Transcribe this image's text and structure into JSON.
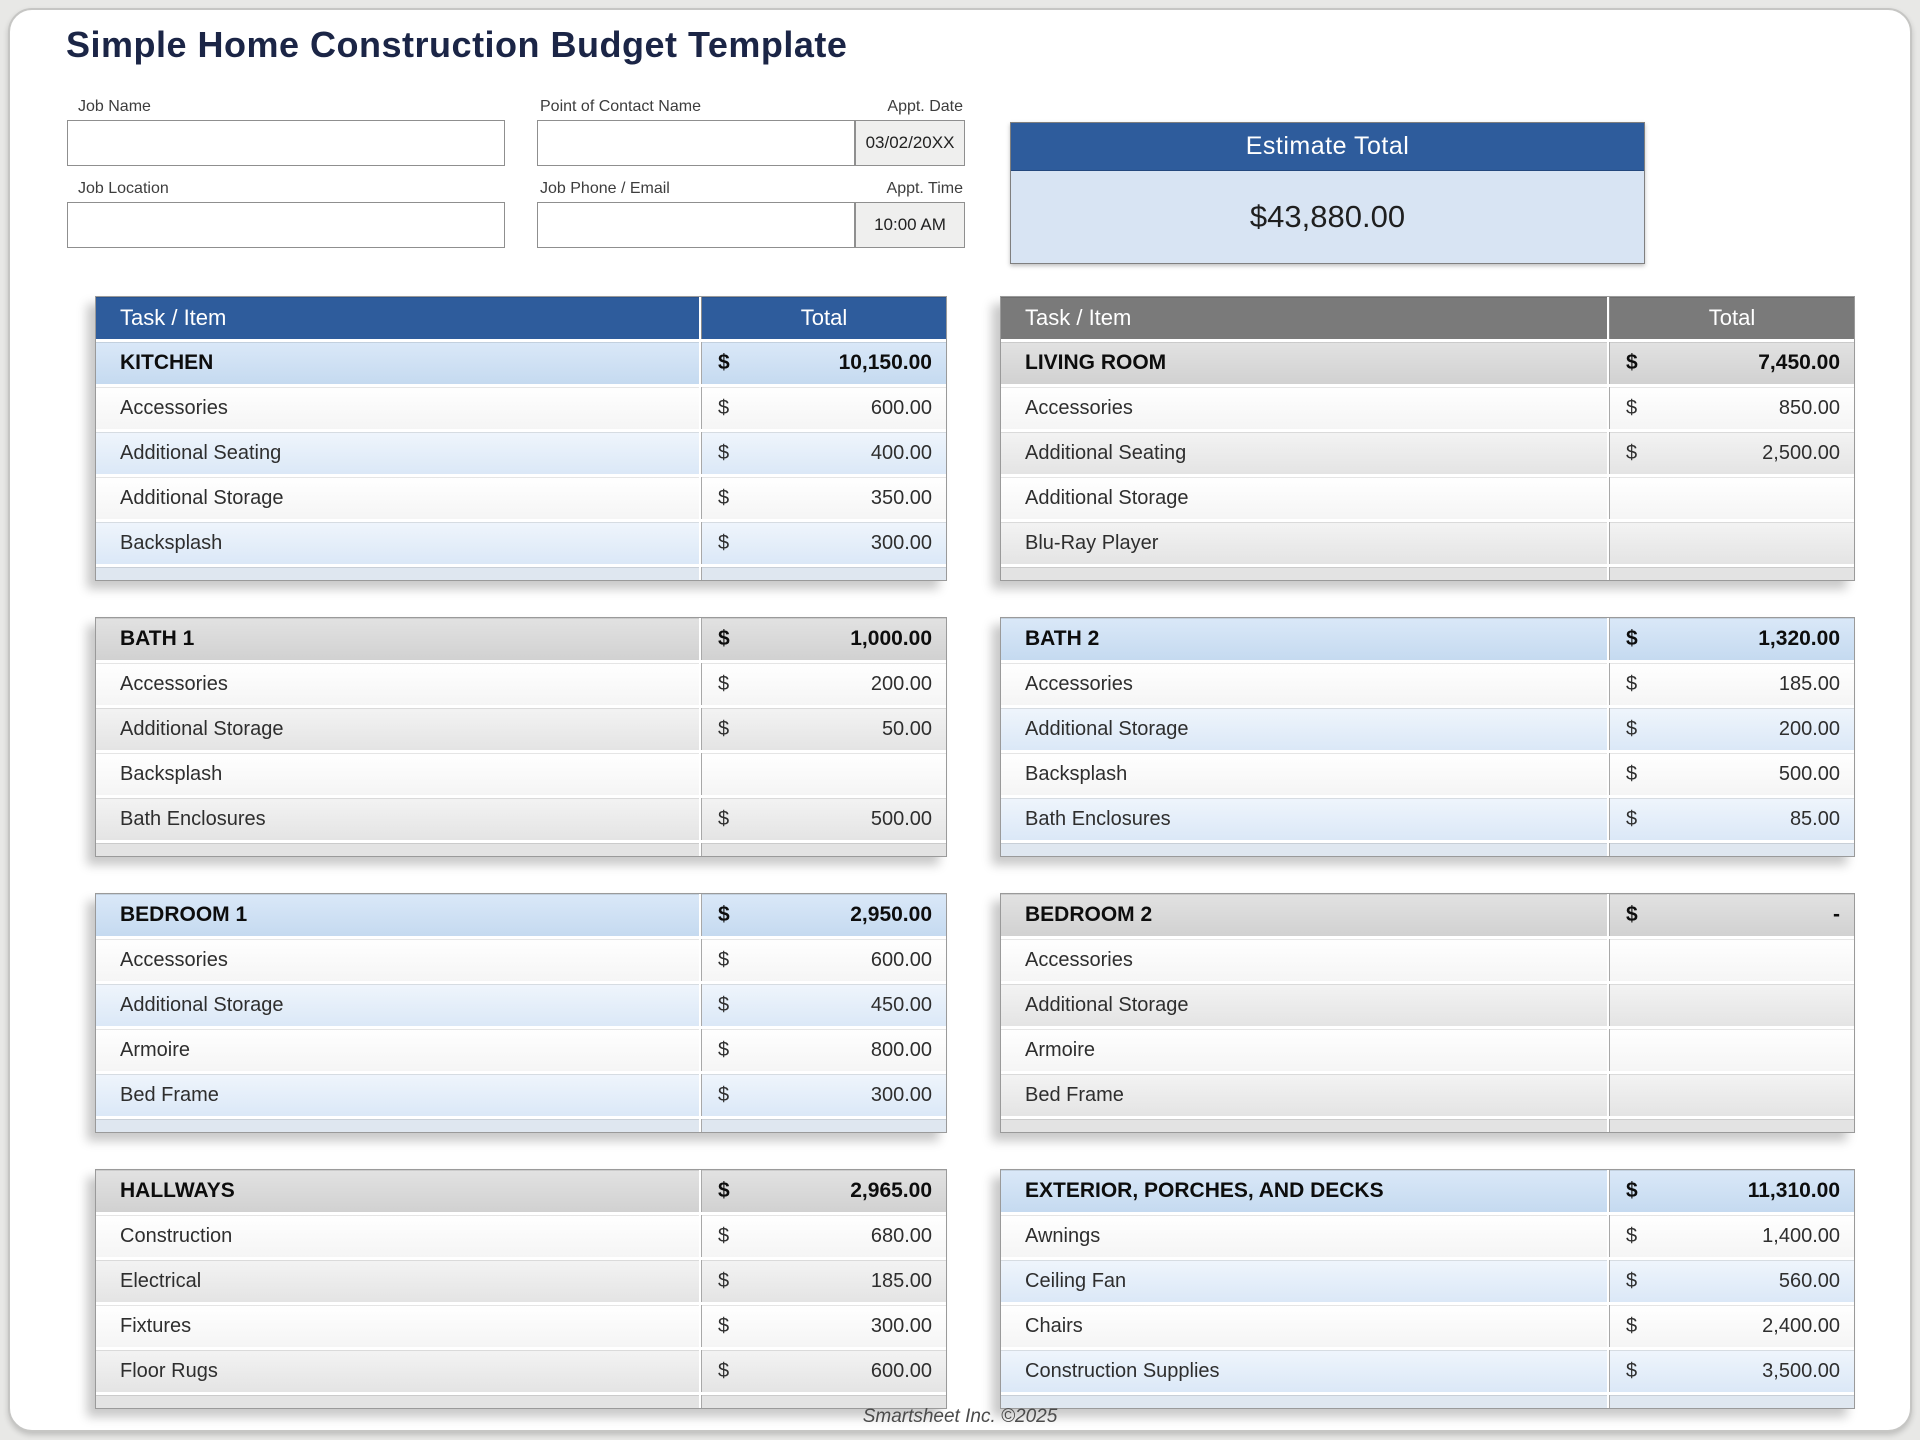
{
  "page": {
    "title": "Simple Home Construction Budget Template",
    "footer": "Smartsheet Inc. ©2025"
  },
  "form": {
    "job_name": {
      "label": "Job Name",
      "value": ""
    },
    "job_location": {
      "label": "Job Location",
      "value": ""
    },
    "contact_name": {
      "label": "Point of Contact Name",
      "value": ""
    },
    "job_phone_email": {
      "label": "Job Phone / Email",
      "value": ""
    },
    "appt_date": {
      "label": "Appt. Date",
      "value": "03/02/20XX"
    },
    "appt_time": {
      "label": "Appt. Time",
      "value": "10:00 AM"
    }
  },
  "estimate": {
    "label": "Estimate Total",
    "value": "$43,880.00"
  },
  "columns": {
    "task": "Task / Item",
    "total": "Total"
  },
  "currency_symbol": "$",
  "colors": {
    "title_navy": "#1b2546",
    "accent_blue": "#2e5c9c",
    "accent_gray": "#7a7a7a",
    "section_blue": "#cde0f4",
    "section_gray": "#d9d9d9",
    "row_blue": "#dee9f7",
    "row_gray": "#e9e9e9",
    "estimate_body": "#d8e4f3"
  },
  "tables": [
    {
      "name": "KITCHEN",
      "theme": "blue",
      "show_columns": true,
      "total": "10,150.00",
      "rows": [
        {
          "item": "Accessories",
          "amount": "600.00"
        },
        {
          "item": "Additional Seating",
          "amount": "400.00"
        },
        {
          "item": "Additional Storage",
          "amount": "350.00"
        },
        {
          "item": "Backsplash",
          "amount": "300.00"
        }
      ]
    },
    {
      "name": "LIVING ROOM",
      "theme": "gray",
      "show_columns": true,
      "total": "7,450.00",
      "rows": [
        {
          "item": "Accessories",
          "amount": "850.00"
        },
        {
          "item": "Additional Seating",
          "amount": "2,500.00"
        },
        {
          "item": "Additional Storage",
          "amount": ""
        },
        {
          "item": "Blu-Ray Player",
          "amount": ""
        }
      ]
    },
    {
      "name": "BATH 1",
      "theme": "gray",
      "show_columns": false,
      "total": "1,000.00",
      "rows": [
        {
          "item": "Accessories",
          "amount": "200.00"
        },
        {
          "item": "Additional Storage",
          "amount": "50.00"
        },
        {
          "item": "Backsplash",
          "amount": ""
        },
        {
          "item": "Bath Enclosures",
          "amount": "500.00"
        }
      ]
    },
    {
      "name": "BATH 2",
      "theme": "blue",
      "show_columns": false,
      "total": "1,320.00",
      "rows": [
        {
          "item": "Accessories",
          "amount": "185.00"
        },
        {
          "item": "Additional Storage",
          "amount": "200.00"
        },
        {
          "item": "Backsplash",
          "amount": "500.00"
        },
        {
          "item": "Bath Enclosures",
          "amount": "85.00"
        }
      ]
    },
    {
      "name": "BEDROOM 1",
      "theme": "blue",
      "show_columns": false,
      "total": "2,950.00",
      "rows": [
        {
          "item": "Accessories",
          "amount": "600.00"
        },
        {
          "item": "Additional Storage",
          "amount": "450.00"
        },
        {
          "item": "Armoire",
          "amount": "800.00"
        },
        {
          "item": "Bed Frame",
          "amount": "300.00"
        }
      ]
    },
    {
      "name": "BEDROOM 2",
      "theme": "gray",
      "show_columns": false,
      "total": "-",
      "rows": [
        {
          "item": "Accessories",
          "amount": ""
        },
        {
          "item": "Additional Storage",
          "amount": ""
        },
        {
          "item": "Armoire",
          "amount": ""
        },
        {
          "item": "Bed Frame",
          "amount": ""
        }
      ]
    },
    {
      "name": "HALLWAYS",
      "theme": "gray",
      "show_columns": false,
      "total": "2,965.00",
      "rows": [
        {
          "item": "Construction",
          "amount": "680.00"
        },
        {
          "item": "Electrical",
          "amount": "185.00"
        },
        {
          "item": "Fixtures",
          "amount": "300.00"
        },
        {
          "item": "Floor Rugs",
          "amount": "600.00"
        }
      ]
    },
    {
      "name": "EXTERIOR, PORCHES, AND DECKS",
      "theme": "blue",
      "show_columns": false,
      "total": "11,310.00",
      "rows": [
        {
          "item": "Awnings",
          "amount": "1,400.00"
        },
        {
          "item": "Ceiling Fan",
          "amount": "560.00"
        },
        {
          "item": "Chairs",
          "amount": "2,400.00"
        },
        {
          "item": "Construction Supplies",
          "amount": "3,500.00"
        }
      ]
    }
  ]
}
